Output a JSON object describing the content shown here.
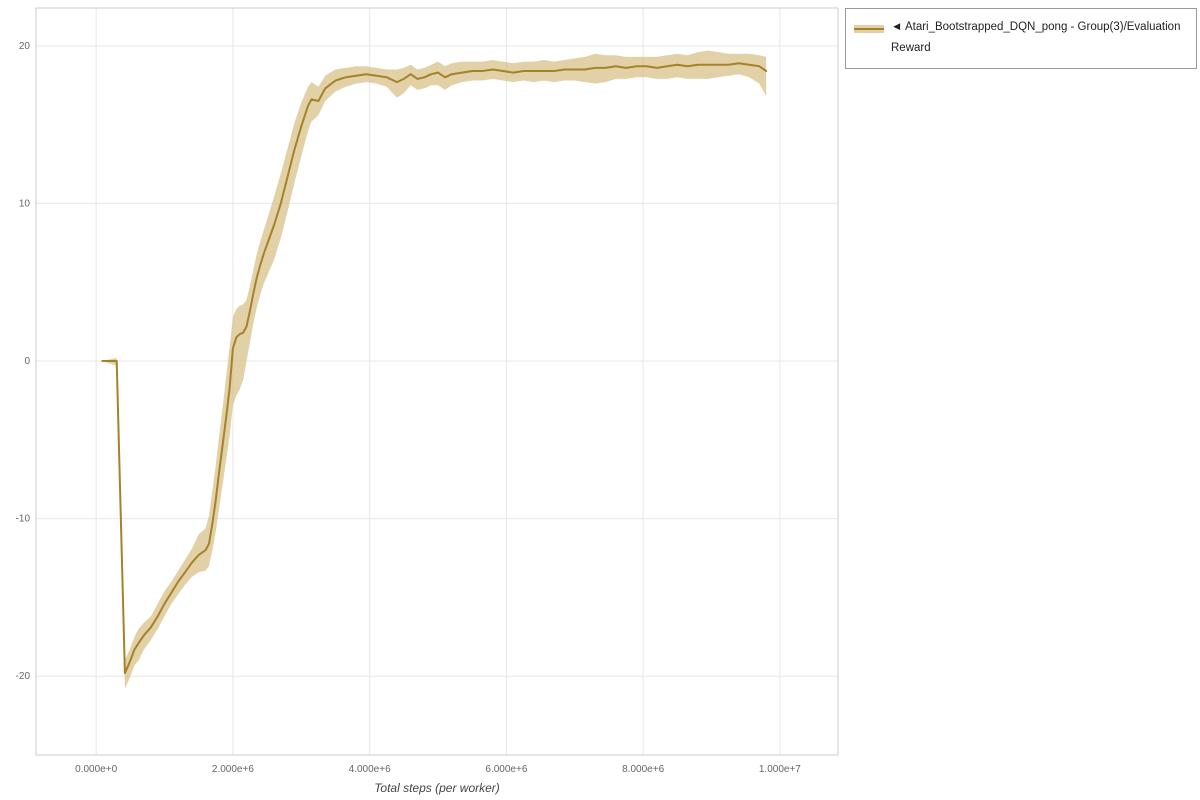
{
  "legend": {
    "marker": "◄",
    "label": "Atari_Bootstrapped_DQN_pong - Group(3)/Evaluation Reward"
  },
  "chart_data": {
    "type": "line",
    "title": "",
    "xlabel": "Total steps (per worker)",
    "ylabel": "",
    "xlim": [
      -880000,
      10850000
    ],
    "ylim": [
      -25,
      22.4
    ],
    "grid": true,
    "legend_position": "top-right",
    "xticks": {
      "values": [
        0,
        2000000,
        4000000,
        6000000,
        8000000,
        10000000
      ],
      "labels": [
        "0.000e+0",
        "2.000e+6",
        "4.000e+6",
        "6.000e+6",
        "8.000e+6",
        "1.000e+7"
      ]
    },
    "yticks": {
      "values": [
        -20,
        -10,
        0,
        10,
        20
      ],
      "labels": [
        "-20",
        "-10",
        "0",
        "10",
        "20"
      ]
    },
    "style": {
      "grid_color": "#e7e7e7",
      "border_color": "#cccccc",
      "tick_color": "#666666",
      "line_width": 2
    },
    "series": [
      {
        "name": "Atari_Bootstrapped_DQN_pong - Group(3)/Evaluation Reward",
        "color": "#a5822a",
        "band_color": "#d6bd80",
        "band_opacity": 0.7,
        "points_format": [
          "x",
          "y",
          "band_lower",
          "band_upper"
        ],
        "points": [
          [
            90000,
            0.0,
            0.0,
            0.0
          ],
          [
            300000,
            0.0,
            -0.3,
            0.2
          ],
          [
            420000,
            -19.8,
            -20.8,
            -19.0
          ],
          [
            500000,
            -19.0,
            -20.0,
            -18.2
          ],
          [
            560000,
            -18.3,
            -19.3,
            -17.5
          ],
          [
            620000,
            -17.9,
            -19.0,
            -17.0
          ],
          [
            700000,
            -17.4,
            -18.3,
            -16.6
          ],
          [
            800000,
            -16.9,
            -17.7,
            -16.2
          ],
          [
            900000,
            -16.2,
            -17.0,
            -15.4
          ],
          [
            1000000,
            -15.4,
            -16.2,
            -14.6
          ],
          [
            1100000,
            -14.7,
            -15.4,
            -14.0
          ],
          [
            1200000,
            -14.0,
            -14.8,
            -13.3
          ],
          [
            1300000,
            -13.4,
            -14.2,
            -12.6
          ],
          [
            1400000,
            -12.8,
            -13.7,
            -11.9
          ],
          [
            1500000,
            -12.3,
            -13.4,
            -11.0
          ],
          [
            1600000,
            -12.0,
            -13.3,
            -10.6
          ],
          [
            1650000,
            -11.6,
            -13.0,
            -9.8
          ],
          [
            1700000,
            -10.3,
            -12.0,
            -8.2
          ],
          [
            1750000,
            -8.8,
            -10.8,
            -6.6
          ],
          [
            1800000,
            -7.0,
            -9.3,
            -4.7
          ],
          [
            1850000,
            -5.3,
            -7.8,
            -2.9
          ],
          [
            1900000,
            -3.6,
            -6.3,
            -1.0
          ],
          [
            1950000,
            -1.8,
            -4.8,
            0.8
          ],
          [
            2000000,
            0.8,
            -2.8,
            2.8
          ],
          [
            2050000,
            1.5,
            -2.2,
            3.3
          ],
          [
            2100000,
            1.7,
            -1.8,
            3.5
          ],
          [
            2150000,
            1.8,
            -1.2,
            3.6
          ],
          [
            2200000,
            2.2,
            0.0,
            3.9
          ],
          [
            2250000,
            3.2,
            1.2,
            4.8
          ],
          [
            2300000,
            4.3,
            2.4,
            5.8
          ],
          [
            2350000,
            5.3,
            3.4,
            6.8
          ],
          [
            2400000,
            6.1,
            4.2,
            7.6
          ],
          [
            2450000,
            6.8,
            4.9,
            8.3
          ],
          [
            2500000,
            7.4,
            5.4,
            9.0
          ],
          [
            2600000,
            8.6,
            6.4,
            10.4
          ],
          [
            2700000,
            10.0,
            7.8,
            11.9
          ],
          [
            2800000,
            11.7,
            9.5,
            13.5
          ],
          [
            2900000,
            13.4,
            11.3,
            15.1
          ],
          [
            3000000,
            14.9,
            13.0,
            16.4
          ],
          [
            3100000,
            16.2,
            14.6,
            17.4
          ],
          [
            3150000,
            16.6,
            15.2,
            17.7
          ],
          [
            3250000,
            16.5,
            15.6,
            17.4
          ],
          [
            3350000,
            17.3,
            16.5,
            18.1
          ],
          [
            3500000,
            17.8,
            17.1,
            18.5
          ],
          [
            3650000,
            18.0,
            17.4,
            18.6
          ],
          [
            3800000,
            18.1,
            17.6,
            18.7
          ],
          [
            3950000,
            18.2,
            17.7,
            18.7
          ],
          [
            4100000,
            18.1,
            17.6,
            18.6
          ],
          [
            4250000,
            18.0,
            17.4,
            18.5
          ],
          [
            4400000,
            17.7,
            16.7,
            18.5
          ],
          [
            4500000,
            17.9,
            17.0,
            18.6
          ],
          [
            4600000,
            18.2,
            17.5,
            18.8
          ],
          [
            4700000,
            17.9,
            17.2,
            18.5
          ],
          [
            4800000,
            18.0,
            17.3,
            18.6
          ],
          [
            4900000,
            18.2,
            17.5,
            18.8
          ],
          [
            5000000,
            18.3,
            17.5,
            19.0
          ],
          [
            5100000,
            18.0,
            17.2,
            18.7
          ],
          [
            5200000,
            18.2,
            17.5,
            18.9
          ],
          [
            5350000,
            18.3,
            17.7,
            19.0
          ],
          [
            5500000,
            18.4,
            17.8,
            19.0
          ],
          [
            5650000,
            18.4,
            17.8,
            19.0
          ],
          [
            5800000,
            18.5,
            17.9,
            19.1
          ],
          [
            5950000,
            18.4,
            17.8,
            19.0
          ],
          [
            6100000,
            18.3,
            17.7,
            18.9
          ],
          [
            6250000,
            18.4,
            17.8,
            19.0
          ],
          [
            6400000,
            18.4,
            17.7,
            19.0
          ],
          [
            6550000,
            18.4,
            17.8,
            19.1
          ],
          [
            6700000,
            18.4,
            17.7,
            19.0
          ],
          [
            6850000,
            18.5,
            17.8,
            19.1
          ],
          [
            7000000,
            18.5,
            17.8,
            19.2
          ],
          [
            7150000,
            18.5,
            17.7,
            19.3
          ],
          [
            7300000,
            18.6,
            17.6,
            19.5
          ],
          [
            7450000,
            18.6,
            17.7,
            19.4
          ],
          [
            7600000,
            18.7,
            17.9,
            19.4
          ],
          [
            7750000,
            18.6,
            17.9,
            19.3
          ],
          [
            7900000,
            18.7,
            18.0,
            19.3
          ],
          [
            8050000,
            18.7,
            18.0,
            19.3
          ],
          [
            8200000,
            18.6,
            17.9,
            19.3
          ],
          [
            8350000,
            18.7,
            17.9,
            19.4
          ],
          [
            8500000,
            18.8,
            18.0,
            19.5
          ],
          [
            8650000,
            18.7,
            17.9,
            19.4
          ],
          [
            8800000,
            18.8,
            17.9,
            19.6
          ],
          [
            8950000,
            18.8,
            17.9,
            19.7
          ],
          [
            9100000,
            18.8,
            18.0,
            19.6
          ],
          [
            9250000,
            18.8,
            18.1,
            19.5
          ],
          [
            9400000,
            18.9,
            18.2,
            19.5
          ],
          [
            9550000,
            18.8,
            18.0,
            19.5
          ],
          [
            9700000,
            18.7,
            17.6,
            19.4
          ],
          [
            9800000,
            18.4,
            16.8,
            19.3
          ]
        ]
      }
    ]
  }
}
